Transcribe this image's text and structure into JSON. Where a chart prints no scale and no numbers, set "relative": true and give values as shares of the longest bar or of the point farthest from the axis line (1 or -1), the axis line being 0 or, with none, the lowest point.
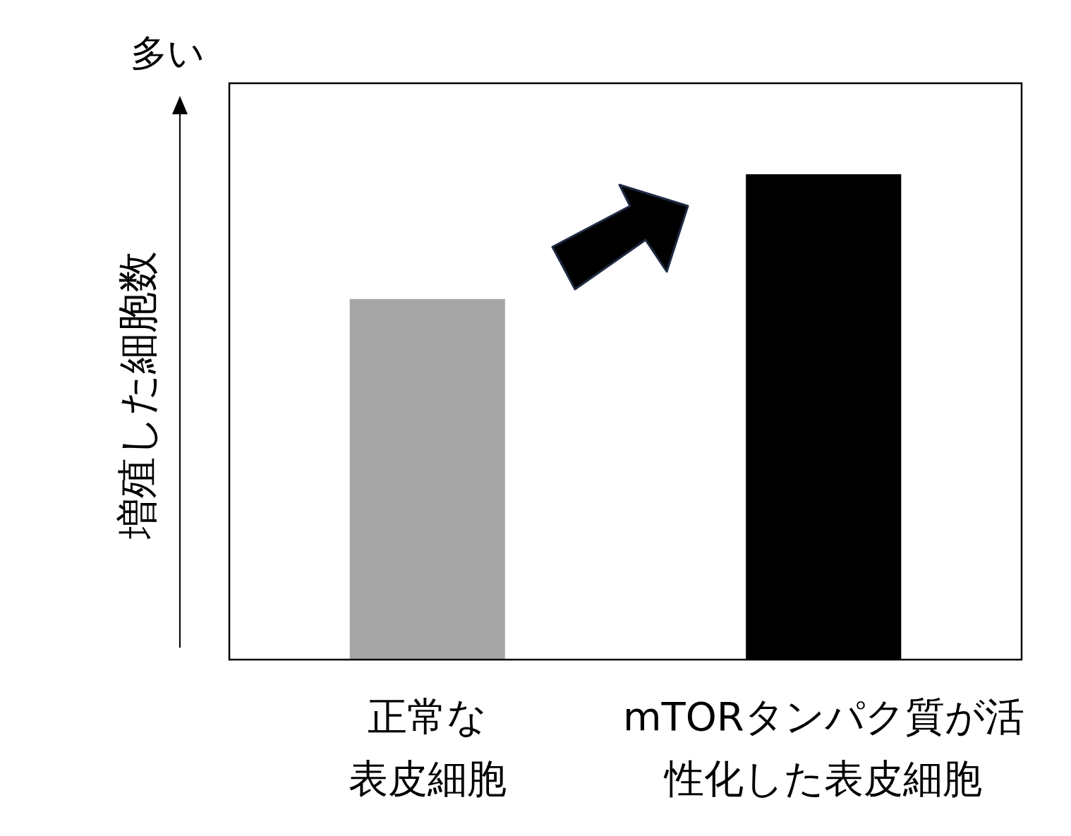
{
  "chart_data": {
    "type": "bar",
    "relative": true,
    "ylabel": "増殖した細胞数",
    "annotations": [
      "多い"
    ],
    "categories": [
      "正常な表皮細胞",
      "mTORタンパク質が活性化した表皮細胞"
    ],
    "values": [
      0.743,
      1
    ],
    "colors": [
      "#a6a6a6",
      "#000000"
    ]
  }
}
